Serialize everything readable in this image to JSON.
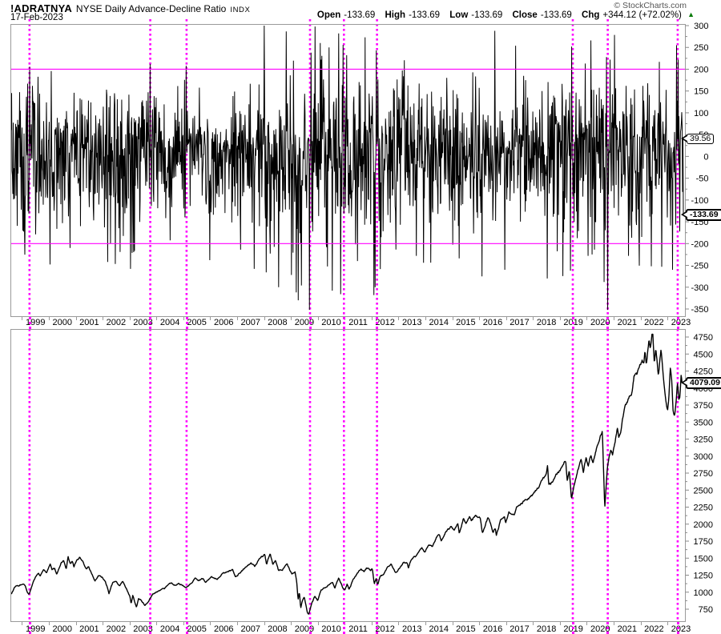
{
  "header": {
    "symbol": "!ADRATNYA",
    "description": "NYSE Daily Advance-Decline Ratio",
    "exchange": "INDX",
    "date": "17-Feb-2023",
    "copyright": "© StockCharts.com",
    "quote": {
      "open_label": "Open",
      "open": "-133.69",
      "high_label": "High",
      "high": "-133.69",
      "low_label": "Low",
      "low": "-133.69",
      "close_label": "Close",
      "close": "-133.69",
      "chg_label": "Chg",
      "chg": "+344.12 (+72.02%)",
      "direction_icon": "▲"
    }
  },
  "colors": {
    "accent_magenta": "#FF00FF",
    "series_black": "#000000",
    "panel_border_gray": "#9a9a9a",
    "tick_gray": "#888888",
    "change_up_green": "#067A06"
  },
  "x_axis": {
    "years": [
      1999,
      2000,
      2001,
      2002,
      2003,
      2004,
      2005,
      2006,
      2007,
      2008,
      2009,
      2010,
      2011,
      2012,
      2013,
      2014,
      2015,
      2016,
      2017,
      2018,
      2019,
      2020,
      2021,
      2022,
      2023
    ]
  },
  "chart_data": [
    {
      "type": "line",
      "name": "nyse-daily-advance-decline-ratio",
      "xlim": [
        1998.1,
        2023.15
      ],
      "ylim": [
        -350,
        300
      ],
      "y_ticks": [
        300,
        250,
        200,
        150,
        100,
        50,
        0,
        -50,
        -100,
        -150,
        -200,
        -250,
        -300,
        -350
      ],
      "grid": false,
      "hlines": [
        200,
        -200
      ],
      "event_vlines": [
        1998.78,
        2003.27,
        2004.62,
        2009.21,
        2010.47,
        2011.7,
        2018.98,
        2020.28,
        2022.88
      ],
      "last_value": -133.69,
      "last_label": "-133.69",
      "marker_value": 39.56,
      "marker_label": "39.56",
      "noise_model": {
        "seed": 1337,
        "points": 1680,
        "mean": 5,
        "negative_scale": 1.18,
        "clip_min": -352,
        "clip_max": 300,
        "volatility_eras": [
          {
            "until": 2003.6,
            "sigma": 82
          },
          {
            "until": 2007.3,
            "sigma": 62
          },
          {
            "until": 2012.0,
            "sigma": 98
          },
          {
            "until": 2016.2,
            "sigma": 74
          },
          {
            "until": 2018.0,
            "sigma": 62
          },
          {
            "until": 2021.2,
            "sigma": 80
          },
          {
            "until": 2024.0,
            "sigma": 84
          }
        ]
      },
      "spikes": [
        [
          1998.78,
          206
        ],
        [
          1999.55,
          -248
        ],
        [
          2000.3,
          -210
        ],
        [
          2001.7,
          -242
        ],
        [
          2002.55,
          -258
        ],
        [
          2003.27,
          212
        ],
        [
          2004.62,
          208
        ],
        [
          2005.5,
          -238
        ],
        [
          2007.15,
          -258
        ],
        [
          2007.6,
          -266
        ],
        [
          2008.07,
          -300
        ],
        [
          2008.55,
          -272
        ],
        [
          2008.72,
          -312
        ],
        [
          2008.8,
          -330
        ],
        [
          2008.92,
          -296
        ],
        [
          2009.21,
          -352
        ],
        [
          2009.28,
          238
        ],
        [
          2009.42,
          298
        ],
        [
          2009.62,
          260
        ],
        [
          2009.95,
          250
        ],
        [
          2010.06,
          -308
        ],
        [
          2010.3,
          282
        ],
        [
          2010.38,
          -316
        ],
        [
          2010.47,
          256
        ],
        [
          2011.0,
          -240
        ],
        [
          2011.62,
          -318
        ],
        [
          2011.66,
          -300
        ],
        [
          2011.7,
          243
        ],
        [
          2013.2,
          -228
        ],
        [
          2014.8,
          -234
        ],
        [
          2015.65,
          -275
        ],
        [
          2016.12,
          288
        ],
        [
          2016.5,
          -260
        ],
        [
          2016.9,
          254
        ],
        [
          2018.08,
          -280
        ],
        [
          2018.95,
          -262
        ],
        [
          2018.98,
          252
        ],
        [
          2019.6,
          -228
        ],
        [
          2020.2,
          -288
        ],
        [
          2020.28,
          228
        ],
        [
          2020.42,
          222
        ],
        [
          2021.1,
          -228
        ],
        [
          2021.95,
          -252
        ],
        [
          2022.35,
          -253
        ],
        [
          2022.75,
          -260
        ],
        [
          2022.89,
          255
        ],
        [
          2022.95,
          222
        ],
        [
          2023.02,
          -172
        ]
      ]
    },
    {
      "type": "line",
      "name": "price-index-lower-panel",
      "xlim": [
        1998.1,
        2023.15
      ],
      "ylim": [
        750,
        4750
      ],
      "y_ticks": [
        4750,
        4500,
        4250,
        4000,
        3750,
        3500,
        3250,
        3000,
        2750,
        2500,
        2250,
        2000,
        1750,
        1500,
        1250,
        1000,
        750
      ],
      "grid": false,
      "event_vlines": [
        1998.78,
        2003.27,
        2004.62,
        2009.21,
        2010.47,
        2011.7,
        2018.98,
        2020.28,
        2022.88
      ],
      "last_value": 4079.09,
      "last_label": "4079.09",
      "jitter": {
        "seed": 77,
        "points": 1500
      },
      "keypoints": [
        [
          1998.1,
          975
        ],
        [
          1998.25,
          1085
        ],
        [
          1998.45,
          1110
        ],
        [
          1998.55,
          1135
        ],
        [
          1998.63,
          1090
        ],
        [
          1998.7,
          1000
        ],
        [
          1998.76,
          965
        ],
        [
          1998.85,
          1070
        ],
        [
          1998.95,
          1180
        ],
        [
          1999.05,
          1250
        ],
        [
          1999.12,
          1280
        ],
        [
          1999.18,
          1235
        ],
        [
          1999.3,
          1330
        ],
        [
          1999.42,
          1300
        ],
        [
          1999.55,
          1420
        ],
        [
          1999.62,
          1330
        ],
        [
          1999.72,
          1350
        ],
        [
          1999.8,
          1270
        ],
        [
          1999.95,
          1430
        ],
        [
          2000.05,
          1460
        ],
        [
          2000.15,
          1350
        ],
        [
          2000.22,
          1520
        ],
        [
          2000.3,
          1420
        ],
        [
          2000.38,
          1460
        ],
        [
          2000.44,
          1370
        ],
        [
          2000.52,
          1450
        ],
        [
          2000.65,
          1515
        ],
        [
          2000.78,
          1430
        ],
        [
          2000.9,
          1330
        ],
        [
          2000.98,
          1380
        ],
        [
          2001.1,
          1270
        ],
        [
          2001.22,
          1160
        ],
        [
          2001.35,
          1250
        ],
        [
          2001.48,
          1225
        ],
        [
          2001.6,
          1170
        ],
        [
          2001.7,
          1050
        ],
        [
          2001.74,
          970
        ],
        [
          2001.88,
          1140
        ],
        [
          2002.0,
          1150
        ],
        [
          2002.15,
          1100
        ],
        [
          2002.25,
          1160
        ],
        [
          2002.4,
          1050
        ],
        [
          2002.52,
          940
        ],
        [
          2002.57,
          820
        ],
        [
          2002.63,
          950
        ],
        [
          2002.7,
          850
        ],
        [
          2002.77,
          782
        ],
        [
          2002.85,
          910
        ],
        [
          2002.95,
          875
        ],
        [
          2003.08,
          810
        ],
        [
          2003.2,
          850
        ],
        [
          2003.35,
          960
        ],
        [
          2003.5,
          1000
        ],
        [
          2003.65,
          1020
        ],
        [
          2003.8,
          1050
        ],
        [
          2003.95,
          1100
        ],
        [
          2004.05,
          1135
        ],
        [
          2004.2,
          1110
        ],
        [
          2004.35,
          1135
        ],
        [
          2004.5,
          1090
        ],
        [
          2004.62,
          1065
        ],
        [
          2004.8,
          1130
        ],
        [
          2004.95,
          1210
        ],
        [
          2005.08,
          1165
        ],
        [
          2005.25,
          1195
        ],
        [
          2005.33,
          1140
        ],
        [
          2005.55,
          1235
        ],
        [
          2005.78,
          1180
        ],
        [
          2005.95,
          1260
        ],
        [
          2006.1,
          1290
        ],
        [
          2006.35,
          1325
        ],
        [
          2006.47,
          1225
        ],
        [
          2006.7,
          1315
        ],
        [
          2006.9,
          1400
        ],
        [
          2007.05,
          1430
        ],
        [
          2007.18,
          1385
        ],
        [
          2007.4,
          1510
        ],
        [
          2007.55,
          1550
        ],
        [
          2007.62,
          1410
        ],
        [
          2007.75,
          1560
        ],
        [
          2007.85,
          1410
        ],
        [
          2007.95,
          1480
        ],
        [
          2008.05,
          1330
        ],
        [
          2008.2,
          1320
        ],
        [
          2008.38,
          1420
        ],
        [
          2008.55,
          1260
        ],
        [
          2008.68,
          1290
        ],
        [
          2008.74,
          1160
        ],
        [
          2008.79,
          890
        ],
        [
          2008.84,
          1000
        ],
        [
          2008.89,
          760
        ],
        [
          2008.95,
          880
        ],
        [
          2009.02,
          930
        ],
        [
          2009.08,
          820
        ],
        [
          2009.14,
          700
        ],
        [
          2009.19,
          678
        ],
        [
          2009.3,
          840
        ],
        [
          2009.42,
          940
        ],
        [
          2009.52,
          880
        ],
        [
          2009.65,
          1030
        ],
        [
          2009.8,
          1070
        ],
        [
          2009.95,
          1115
        ],
        [
          2010.08,
          1150
        ],
        [
          2010.16,
          1060
        ],
        [
          2010.3,
          1210
        ],
        [
          2010.44,
          1080
        ],
        [
          2010.53,
          1025
        ],
        [
          2010.62,
          1120
        ],
        [
          2010.69,
          1040
        ],
        [
          2010.85,
          1185
        ],
        [
          2011.0,
          1270
        ],
        [
          2011.14,
          1340
        ],
        [
          2011.25,
          1295
        ],
        [
          2011.36,
          1360
        ],
        [
          2011.5,
          1310
        ],
        [
          2011.56,
          1340
        ],
        [
          2011.63,
          1120
        ],
        [
          2011.7,
          1190
        ],
        [
          2011.76,
          1100
        ],
        [
          2011.86,
          1250
        ],
        [
          2011.96,
          1255
        ],
        [
          2012.1,
          1350
        ],
        [
          2012.26,
          1415
        ],
        [
          2012.42,
          1280
        ],
        [
          2012.6,
          1370
        ],
        [
          2012.72,
          1440
        ],
        [
          2012.86,
          1430
        ],
        [
          2012.9,
          1360
        ],
        [
          2013.0,
          1480
        ],
        [
          2013.18,
          1530
        ],
        [
          2013.4,
          1660
        ],
        [
          2013.5,
          1585
        ],
        [
          2013.68,
          1700
        ],
        [
          2013.8,
          1655
        ],
        [
          2013.95,
          1800
        ],
        [
          2014.05,
          1840
        ],
        [
          2014.12,
          1745
        ],
        [
          2014.28,
          1880
        ],
        [
          2014.5,
          1960
        ],
        [
          2014.6,
          1910
        ],
        [
          2014.74,
          2010
        ],
        [
          2014.8,
          1865
        ],
        [
          2014.95,
          2080
        ],
        [
          2015.05,
          2020
        ],
        [
          2015.18,
          2110
        ],
        [
          2015.25,
          2050
        ],
        [
          2015.4,
          2125
        ],
        [
          2015.58,
          2100
        ],
        [
          2015.66,
          1870
        ],
        [
          2015.76,
          1960
        ],
        [
          2015.86,
          2100
        ],
        [
          2015.96,
          2020
        ],
        [
          2016.05,
          1865
        ],
        [
          2016.14,
          1940
        ],
        [
          2016.18,
          1830
        ],
        [
          2016.35,
          2070
        ],
        [
          2016.48,
          2100
        ],
        [
          2016.53,
          2005
        ],
        [
          2016.65,
          2175
        ],
        [
          2016.85,
          2130
        ],
        [
          2016.95,
          2250
        ],
        [
          2017.1,
          2300
        ],
        [
          2017.25,
          2360
        ],
        [
          2017.42,
          2395
        ],
        [
          2017.6,
          2470
        ],
        [
          2017.8,
          2570
        ],
        [
          2017.95,
          2680
        ],
        [
          2018.05,
          2750
        ],
        [
          2018.09,
          2870
        ],
        [
          2018.13,
          2580
        ],
        [
          2018.27,
          2610
        ],
        [
          2018.42,
          2740
        ],
        [
          2018.58,
          2800
        ],
        [
          2018.72,
          2910
        ],
        [
          2018.77,
          2920
        ],
        [
          2018.82,
          2640
        ],
        [
          2018.9,
          2790
        ],
        [
          2018.98,
          2360
        ],
        [
          2019.08,
          2580
        ],
        [
          2019.22,
          2810
        ],
        [
          2019.34,
          2950
        ],
        [
          2019.42,
          2760
        ],
        [
          2019.52,
          2970
        ],
        [
          2019.6,
          2850
        ],
        [
          2019.7,
          3020
        ],
        [
          2019.78,
          2900
        ],
        [
          2019.92,
          3130
        ],
        [
          2020.05,
          3280
        ],
        [
          2020.13,
          3386
        ],
        [
          2020.17,
          2880
        ],
        [
          2020.22,
          2250
        ],
        [
          2020.32,
          2850
        ],
        [
          2020.45,
          3120
        ],
        [
          2020.51,
          3010
        ],
        [
          2020.62,
          3250
        ],
        [
          2020.69,
          3420
        ],
        [
          2020.74,
          3280
        ],
        [
          2020.82,
          3330
        ],
        [
          2020.88,
          3560
        ],
        [
          2020.98,
          3720
        ],
        [
          2021.08,
          3800
        ],
        [
          2021.14,
          3880
        ],
        [
          2021.22,
          3900
        ],
        [
          2021.32,
          4180
        ],
        [
          2021.42,
          4190
        ],
        [
          2021.52,
          4320
        ],
        [
          2021.62,
          4420
        ],
        [
          2021.67,
          4350
        ],
        [
          2021.72,
          4530
        ],
        [
          2021.77,
          4350
        ],
        [
          2021.87,
          4700
        ],
        [
          2021.92,
          4560
        ],
        [
          2021.98,
          4780
        ],
        [
          2022.01,
          4797
        ],
        [
          2022.07,
          4330
        ],
        [
          2022.12,
          4590
        ],
        [
          2022.22,
          4170
        ],
        [
          2022.32,
          4590
        ],
        [
          2022.42,
          4120
        ],
        [
          2022.47,
          3900
        ],
        [
          2022.56,
          3660
        ],
        [
          2022.62,
          3920
        ],
        [
          2022.66,
          4300
        ],
        [
          2022.72,
          4110
        ],
        [
          2022.77,
          3640
        ],
        [
          2022.82,
          3585
        ],
        [
          2022.88,
          3770
        ],
        [
          2022.93,
          4080
        ],
        [
          2022.98,
          3830
        ],
        [
          2023.02,
          3855
        ],
        [
          2023.07,
          4180
        ],
        [
          2023.1,
          4060
        ],
        [
          2023.14,
          4079.09
        ]
      ]
    }
  ]
}
